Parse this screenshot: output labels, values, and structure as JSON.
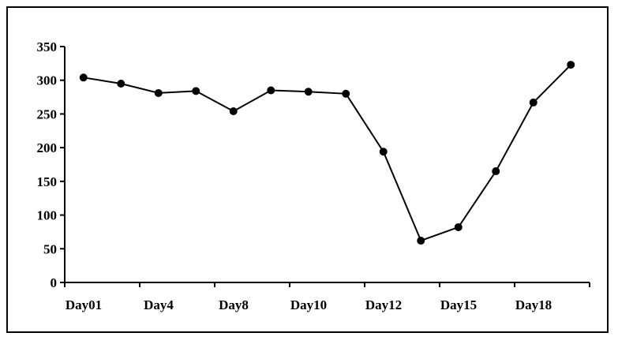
{
  "chart_data": {
    "type": "line",
    "title": "",
    "xlabel": "",
    "ylabel": "",
    "ylim": [
      0,
      350
    ],
    "yticks": [
      0,
      50,
      100,
      150,
      200,
      250,
      300,
      350
    ],
    "grid": false,
    "legend": "none",
    "x_tick_labels": [
      "Day01",
      "Day4",
      "Day8",
      "Day10",
      "Day12",
      "Day15",
      "Day18"
    ],
    "values": [
      304,
      295,
      281,
      284,
      254,
      285,
      283,
      280,
      194,
      62,
      82,
      165,
      267,
      323
    ],
    "line_color": "#000000",
    "marker_color": "#000000"
  }
}
